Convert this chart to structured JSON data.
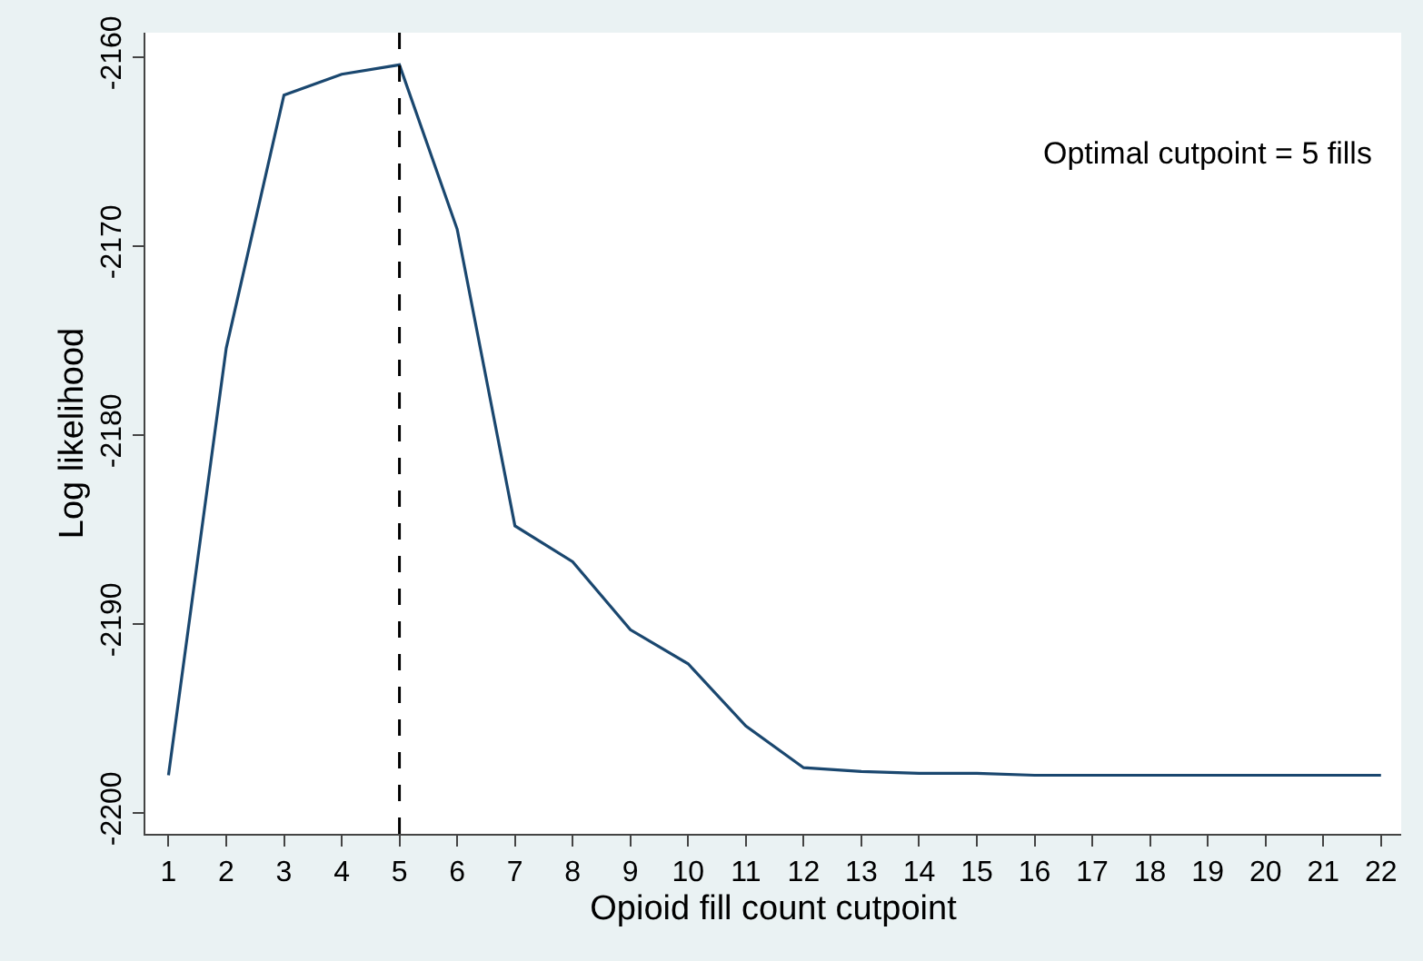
{
  "chart_data": {
    "type": "line",
    "xlabel": "Opioid fill count cutpoint",
    "ylabel": "Log likelihood",
    "x": [
      1,
      2,
      3,
      4,
      5,
      6,
      7,
      8,
      9,
      10,
      11,
      12,
      13,
      14,
      15,
      16,
      17,
      18,
      19,
      20,
      21,
      22
    ],
    "series": [
      {
        "color": "#1a476f",
        "values": [
          -2198,
          -2175.4,
          -2162.0,
          -2160.9,
          -2160.4,
          -2169.1,
          -2184.8,
          -2186.7,
          -2190.3,
          -2192.1,
          -2195.4,
          -2197.6,
          -2197.8,
          -2197.9,
          -2197.9,
          -2198,
          -2198,
          -2198,
          -2198,
          -2198,
          -2198,
          -2198
        ]
      }
    ],
    "xlim": [
      0.6,
      22.35
    ],
    "xticks": [
      1,
      2,
      3,
      4,
      5,
      6,
      7,
      8,
      9,
      10,
      11,
      12,
      13,
      14,
      15,
      16,
      17,
      18,
      19,
      20,
      21,
      22
    ],
    "ylim": [
      -2201.1,
      -2158.7
    ],
    "yticks": [
      -2200,
      -2190,
      -2180,
      -2170,
      -2160
    ],
    "ref_lines": [
      {
        "axis": "x",
        "value": 5,
        "color": "#000000",
        "line_style": "dashed"
      }
    ],
    "annotations": [
      "Optimal cutpoint = 5 fills"
    ],
    "marker": "none",
    "line_style": "solid"
  }
}
